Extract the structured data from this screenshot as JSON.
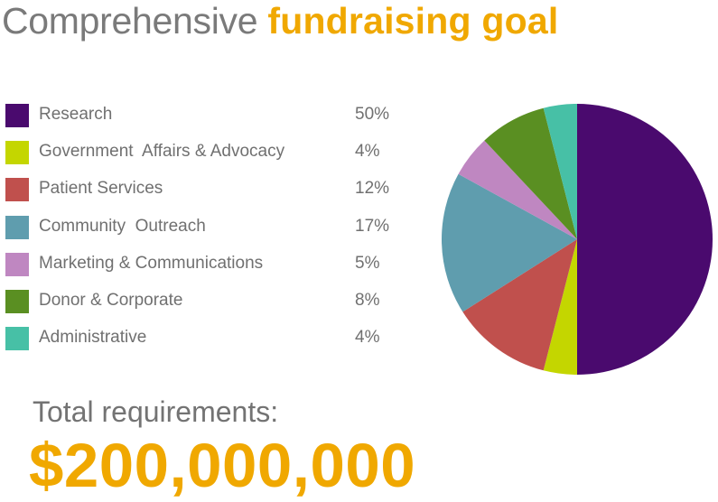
{
  "title": {
    "plain": "Comprehensive",
    "accent": "fundraising goal"
  },
  "total": {
    "label": "Total requirements:",
    "value": "$200,000,000"
  },
  "colors": {
    "accent": "#f0a800",
    "text_gray": "#707070"
  },
  "chart_data": {
    "type": "pie",
    "categories": [
      "Research",
      "Government  Affairs & Advocacy",
      "Patient Services",
      "Community  Outreach",
      "Marketing & Communications",
      "Donor & Corporate",
      "Administrative"
    ],
    "values": [
      50,
      4,
      12,
      17,
      5,
      8,
      4
    ],
    "value_labels": [
      "50%",
      "4%",
      "12%",
      "17%",
      "5%",
      "8%",
      "4%"
    ],
    "unit": "%",
    "colors": [
      "#4a0a6e",
      "#c4d600",
      "#c0504d",
      "#5f9dae",
      "#bf87c1",
      "#5a8f22",
      "#47c0a6"
    ],
    "start_angle_deg": 0,
    "direction": "clockwise",
    "legend_position": "left"
  }
}
